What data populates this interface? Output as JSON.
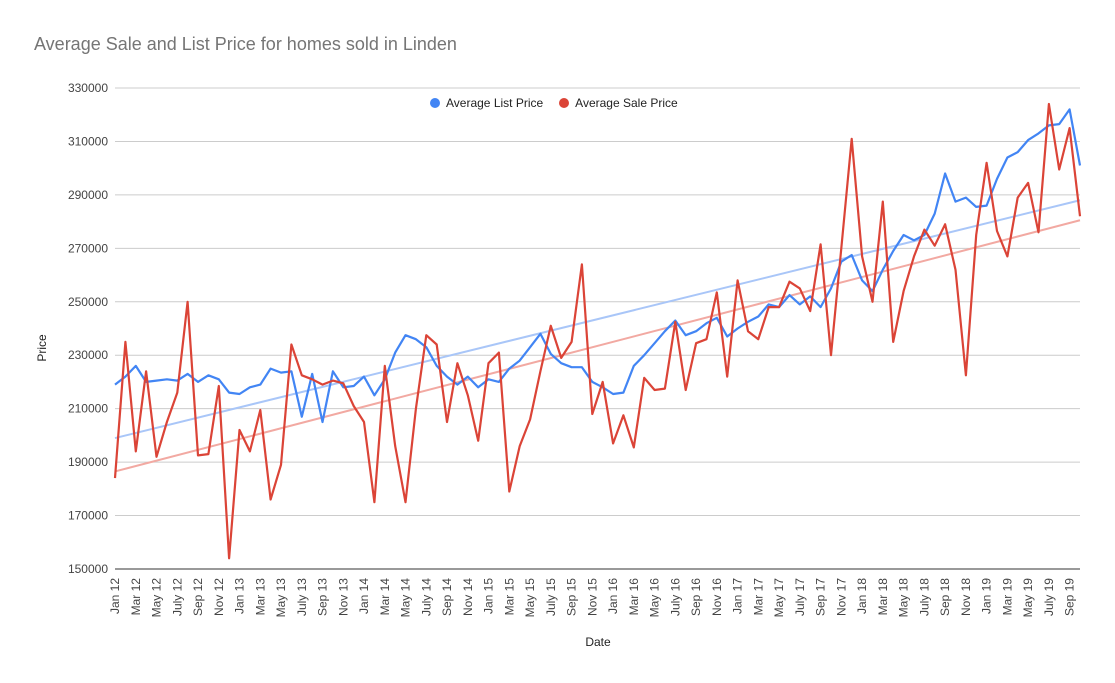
{
  "colors": {
    "list": "#4285f4",
    "sale": "#db4437",
    "list_trend": "#a9c6f8",
    "sale_trend": "#f2a9a2",
    "grid": "#cccccc",
    "text": "#444444"
  },
  "chart_data": {
    "type": "line",
    "title": "Average Sale and List Price for homes sold in Linden",
    "xlabel": "Date",
    "ylabel": "Price",
    "ylim": [
      150000,
      330000
    ],
    "y_ticks": [
      "150000",
      "170000",
      "190000",
      "210000",
      "230000",
      "250000",
      "270000",
      "290000",
      "310000",
      "330000"
    ],
    "legend_position": "top",
    "grid": true,
    "x_tick_labels": [
      "Jan 12",
      "Mar 12",
      "May 12",
      "July 12",
      "Sep 12",
      "Nov 12",
      "Jan 13",
      "Mar 13",
      "May 13",
      "July 13",
      "Sep 13",
      "Nov 13",
      "Jan 14",
      "Mar 14",
      "May 14",
      "July 14",
      "Sep 14",
      "Nov 14",
      "Jan 15",
      "Mar 15",
      "May 15",
      "July 15",
      "Sep 15",
      "Nov 15",
      "Jan 16",
      "Mar 16",
      "May 16",
      "July 16",
      "Sep 16",
      "Nov 16",
      "Jan 17",
      "Mar 17",
      "May 17",
      "July 17",
      "Sep 17",
      "Nov 17",
      "Jan 18",
      "Mar 18",
      "May 18",
      "July 18",
      "Sep 18",
      "Nov 18",
      "Jan 19",
      "Mar 19",
      "May 19",
      "July 19",
      "Sep 19"
    ],
    "x_start": "Jan 12",
    "x_end": "Oct 19",
    "series": [
      {
        "name": "Average List Price",
        "values": [
          219000,
          222000,
          226000,
          220000,
          220500,
          221000,
          220500,
          223000,
          220000,
          222500,
          221000,
          216000,
          215500,
          218000,
          219000,
          225000,
          223500,
          224000,
          207000,
          223000,
          205000,
          224000,
          218000,
          218500,
          222000,
          215000,
          221000,
          231000,
          237500,
          236000,
          233000,
          226000,
          222000,
          219000,
          222000,
          218000,
          221000,
          220000,
          225000,
          228000,
          233000,
          238000,
          230500,
          227000,
          225500,
          225500,
          220000,
          218000,
          215500,
          216000,
          226000,
          230000,
          234500,
          239000,
          243000,
          237500,
          239000,
          242000,
          244000,
          237000,
          240000,
          242500,
          244500,
          249000,
          248000,
          252500,
          249000,
          252000,
          248000,
          255000,
          265000,
          267500,
          258000,
          254000,
          262000,
          269000,
          275000,
          273000,
          275000,
          283000,
          298000,
          287500,
          289000,
          285500,
          286000,
          296000,
          304000,
          306000,
          310500,
          313000,
          316000,
          316500,
          322000,
          301000
        ],
        "trend": [
          199000,
          288000
        ]
      },
      {
        "name": "Average Sale Price",
        "values": [
          184000,
          235000,
          194000,
          224000,
          192000,
          205000,
          216000,
          250000,
          192500,
          193000,
          218500,
          154000,
          202000,
          194000,
          209500,
          176000,
          189000,
          234000,
          222500,
          221000,
          219000,
          220500,
          219500,
          211000,
          205000,
          175000,
          226000,
          196000,
          175000,
          210000,
          237500,
          234000,
          205000,
          227000,
          215000,
          198000,
          227000,
          231000,
          179000,
          196000,
          206000,
          224000,
          241000,
          229000,
          235000,
          264000,
          208000,
          220000,
          197000,
          207500,
          195500,
          221500,
          217000,
          217500,
          242500,
          217000,
          234500,
          236000,
          253500,
          222000,
          258000,
          239000,
          236000,
          248000,
          248000,
          257500,
          255000,
          246500,
          271500,
          230000,
          270000,
          311000,
          267000,
          250000,
          287500,
          235000,
          254000,
          267000,
          277000,
          271000,
          279000,
          262000,
          222500,
          275000,
          302000,
          276500,
          267000,
          289000,
          294500,
          276000,
          324000,
          299500,
          315000,
          282000
        ],
        "trend": [
          186500,
          280500
        ]
      }
    ]
  }
}
